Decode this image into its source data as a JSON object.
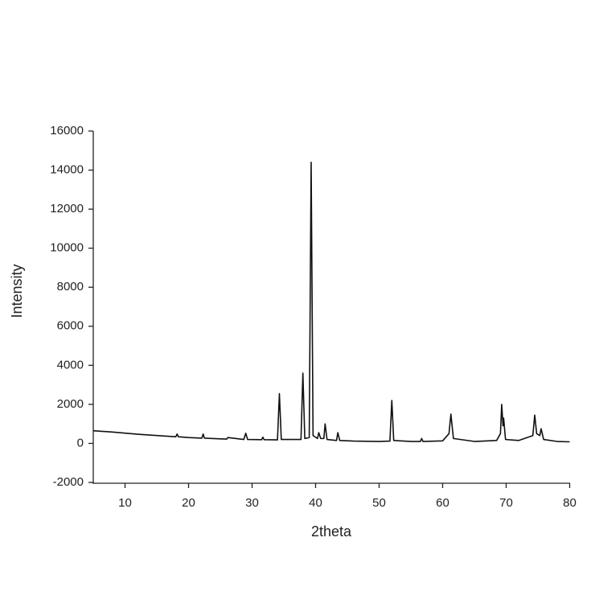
{
  "chart_data": {
    "type": "line",
    "x_label": "2theta",
    "y_label": "Intensity",
    "color": "#111111",
    "xlim": [
      5,
      80
    ],
    "xticks": [
      10,
      20,
      30,
      40,
      50,
      60,
      70,
      80
    ],
    "ylim": [
      -2000,
      16000
    ],
    "yticks": [
      -2000,
      0,
      2000,
      4000,
      6000,
      8000,
      10000,
      12000,
      14000,
      16000
    ],
    "grid": false,
    "x": [
      5,
      8,
      12,
      16,
      18,
      18.2,
      18.4,
      20,
      22.1,
      22.3,
      22.5,
      25,
      26,
      26.2,
      28.7,
      29,
      29.3,
      31.5,
      31.7,
      31.9,
      34,
      34.3,
      34.6,
      37.7,
      38,
      38.3,
      39,
      39.3,
      39.6,
      40.3,
      40.5,
      40.8,
      41.3,
      41.5,
      41.8,
      43.3,
      43.5,
      43.8,
      46,
      50,
      51.7,
      52,
      52.3,
      55,
      56.5,
      56.7,
      56.9,
      60,
      61,
      61.3,
      61.7,
      65,
      68.5,
      69.1,
      69.3,
      69.5,
      69.6,
      69.9,
      72,
      74.2,
      74.5,
      74.8,
      75.3,
      75.5,
      75.9,
      78,
      80
    ],
    "values": [
      650,
      580,
      470,
      380,
      340,
      480,
      340,
      300,
      270,
      480,
      270,
      230,
      220,
      300,
      200,
      520,
      200,
      190,
      320,
      190,
      180,
      2550,
      200,
      200,
      3600,
      250,
      300,
      14400,
      400,
      250,
      550,
      250,
      250,
      1000,
      200,
      150,
      550,
      150,
      120,
      100,
      120,
      2200,
      150,
      100,
      100,
      250,
      100,
      130,
      500,
      1500,
      250,
      100,
      150,
      500,
      2000,
      900,
      1300,
      200,
      150,
      400,
      1450,
      500,
      400,
      750,
      200,
      100,
      80
    ]
  }
}
